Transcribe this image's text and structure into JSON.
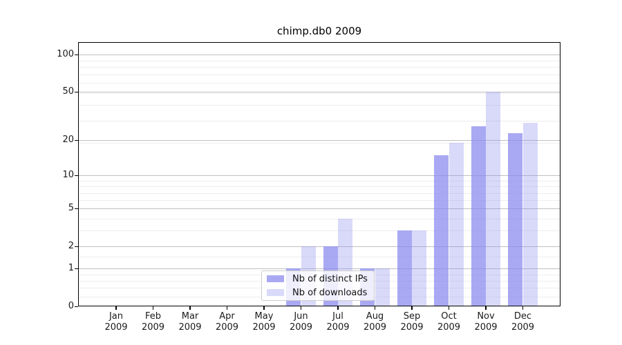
{
  "title": "chimp.db0 2009",
  "colors": {
    "bar_base": "#8888ee",
    "series1_rgba": "rgba(136,136,238,0.72)",
    "series2_rgba": "rgba(136,136,238,0.32)",
    "major_grid": "#bfbfbf",
    "minor_grid": "#ededed",
    "spine": "#000000"
  },
  "chart_data": {
    "type": "bar",
    "title": "chimp.db0 2009",
    "categories": [
      "Jan",
      "Feb",
      "Mar",
      "Apr",
      "May",
      "Jun",
      "Jul",
      "Aug",
      "Sep",
      "Oct",
      "Nov",
      "Dec"
    ],
    "year_label": "2009",
    "series": [
      {
        "name": "Nb of distinct IPs",
        "color": "#8888ee",
        "alpha": 0.72,
        "color_rgba": "rgba(136,136,238,0.72)",
        "values": [
          0,
          0,
          0,
          0,
          0,
          1,
          2,
          1,
          3,
          15,
          26,
          23
        ]
      },
      {
        "name": "Nb of downloads",
        "color": "#8888ee",
        "alpha": 0.32,
        "color_rgba": "rgba(136,136,238,0.32)",
        "values": [
          0,
          0,
          0,
          0,
          0,
          2,
          4,
          1,
          3,
          19,
          50,
          28
        ]
      }
    ],
    "xlabel": "",
    "ylabel": "",
    "yscale": "log10(1+value)",
    "yticks": [
      0,
      1,
      2,
      5,
      10,
      20,
      50,
      100
    ],
    "minor_gridlines": [
      0.2,
      0.4,
      0.6,
      0.8,
      1.5,
      3,
      4,
      6,
      7,
      8,
      9,
      19,
      29,
      39,
      49,
      59,
      69,
      79,
      89
    ],
    "ylim": [
      0,
      126
    ],
    "grid": true,
    "legend_position": "lower center"
  }
}
